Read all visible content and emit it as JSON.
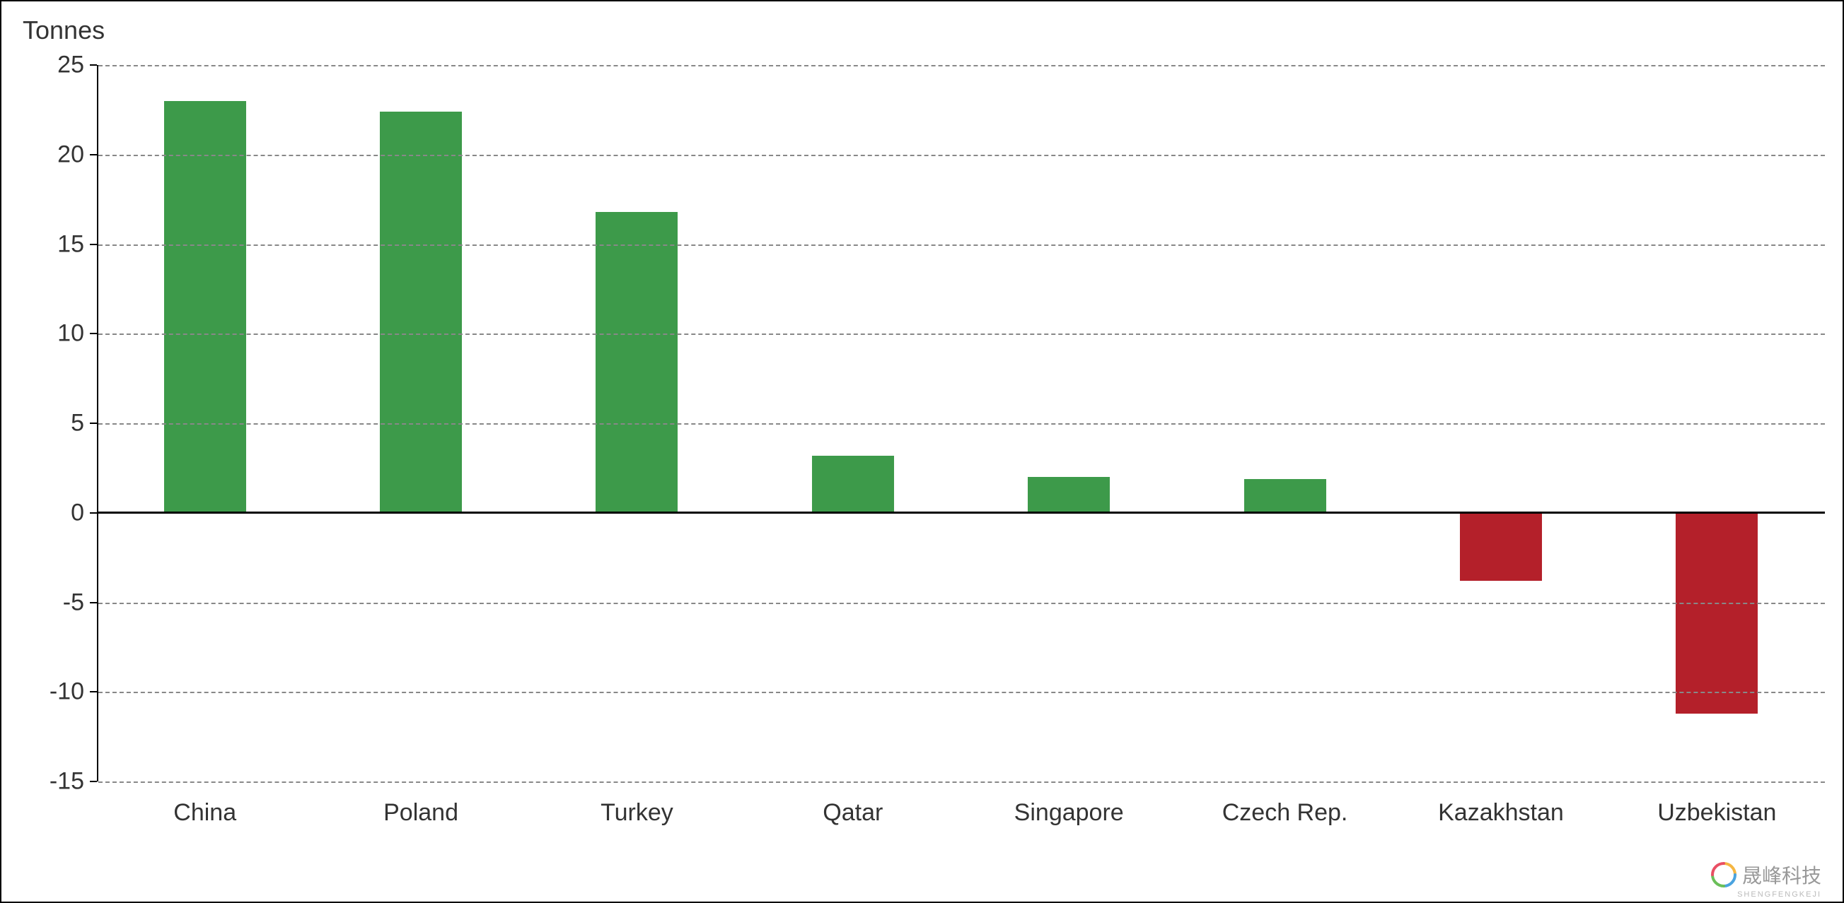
{
  "chart": {
    "type": "bar",
    "y_title": "Tonnes",
    "ylim": [
      -15,
      25
    ],
    "ytick_step": 5,
    "yticks": [
      -15,
      -10,
      -5,
      0,
      5,
      10,
      15,
      20,
      25
    ],
    "categories": [
      "China",
      "Poland",
      "Turkey",
      "Qatar",
      "Singapore",
      "Czech Rep.",
      "Kazakhstan",
      "Uzbekistan"
    ],
    "values": [
      23.0,
      22.4,
      16.8,
      3.2,
      2.0,
      1.9,
      -3.8,
      -11.2
    ],
    "positive_color": "#3d9a4a",
    "negative_color": "#b4202a",
    "background_color": "#ffffff",
    "grid_color": "#888888",
    "axis_color": "#000000",
    "bar_width_ratio": 0.38,
    "label_fontsize": 34,
    "title_fontsize": 36,
    "watermark_text": "晟峰科技",
    "watermark_subtext": "SHENGFENGKEJI"
  }
}
